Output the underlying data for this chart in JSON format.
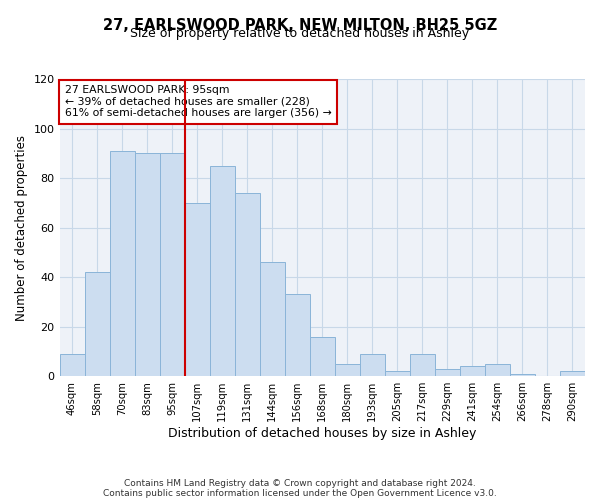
{
  "title": "27, EARLSWOOD PARK, NEW MILTON, BH25 5GZ",
  "subtitle": "Size of property relative to detached houses in Ashley",
  "xlabel": "Distribution of detached houses by size in Ashley",
  "ylabel": "Number of detached properties",
  "bin_labels": [
    "46sqm",
    "58sqm",
    "70sqm",
    "83sqm",
    "95sqm",
    "107sqm",
    "119sqm",
    "131sqm",
    "144sqm",
    "156sqm",
    "168sqm",
    "180sqm",
    "193sqm",
    "205sqm",
    "217sqm",
    "229sqm",
    "241sqm",
    "254sqm",
    "266sqm",
    "278sqm",
    "290sqm"
  ],
  "bar_heights": [
    9,
    42,
    91,
    90,
    90,
    70,
    85,
    74,
    46,
    33,
    16,
    5,
    9,
    2,
    9,
    3,
    4,
    5,
    1,
    0,
    2
  ],
  "bar_color": "#ccddf0",
  "bar_edge_color": "#8ab4d8",
  "vline_color": "#cc0000",
  "annotation_text": "27 EARLSWOOD PARK: 95sqm\n← 39% of detached houses are smaller (228)\n61% of semi-detached houses are larger (356) →",
  "annotation_box_edge_color": "#cc0000",
  "ylim": [
    0,
    120
  ],
  "yticks": [
    0,
    20,
    40,
    60,
    80,
    100,
    120
  ],
  "footer_line1": "Contains HM Land Registry data © Crown copyright and database right 2024.",
  "footer_line2": "Contains public sector information licensed under the Open Government Licence v3.0.",
  "grid_color": "#c8d8e8",
  "background_color": "#eef2f8"
}
